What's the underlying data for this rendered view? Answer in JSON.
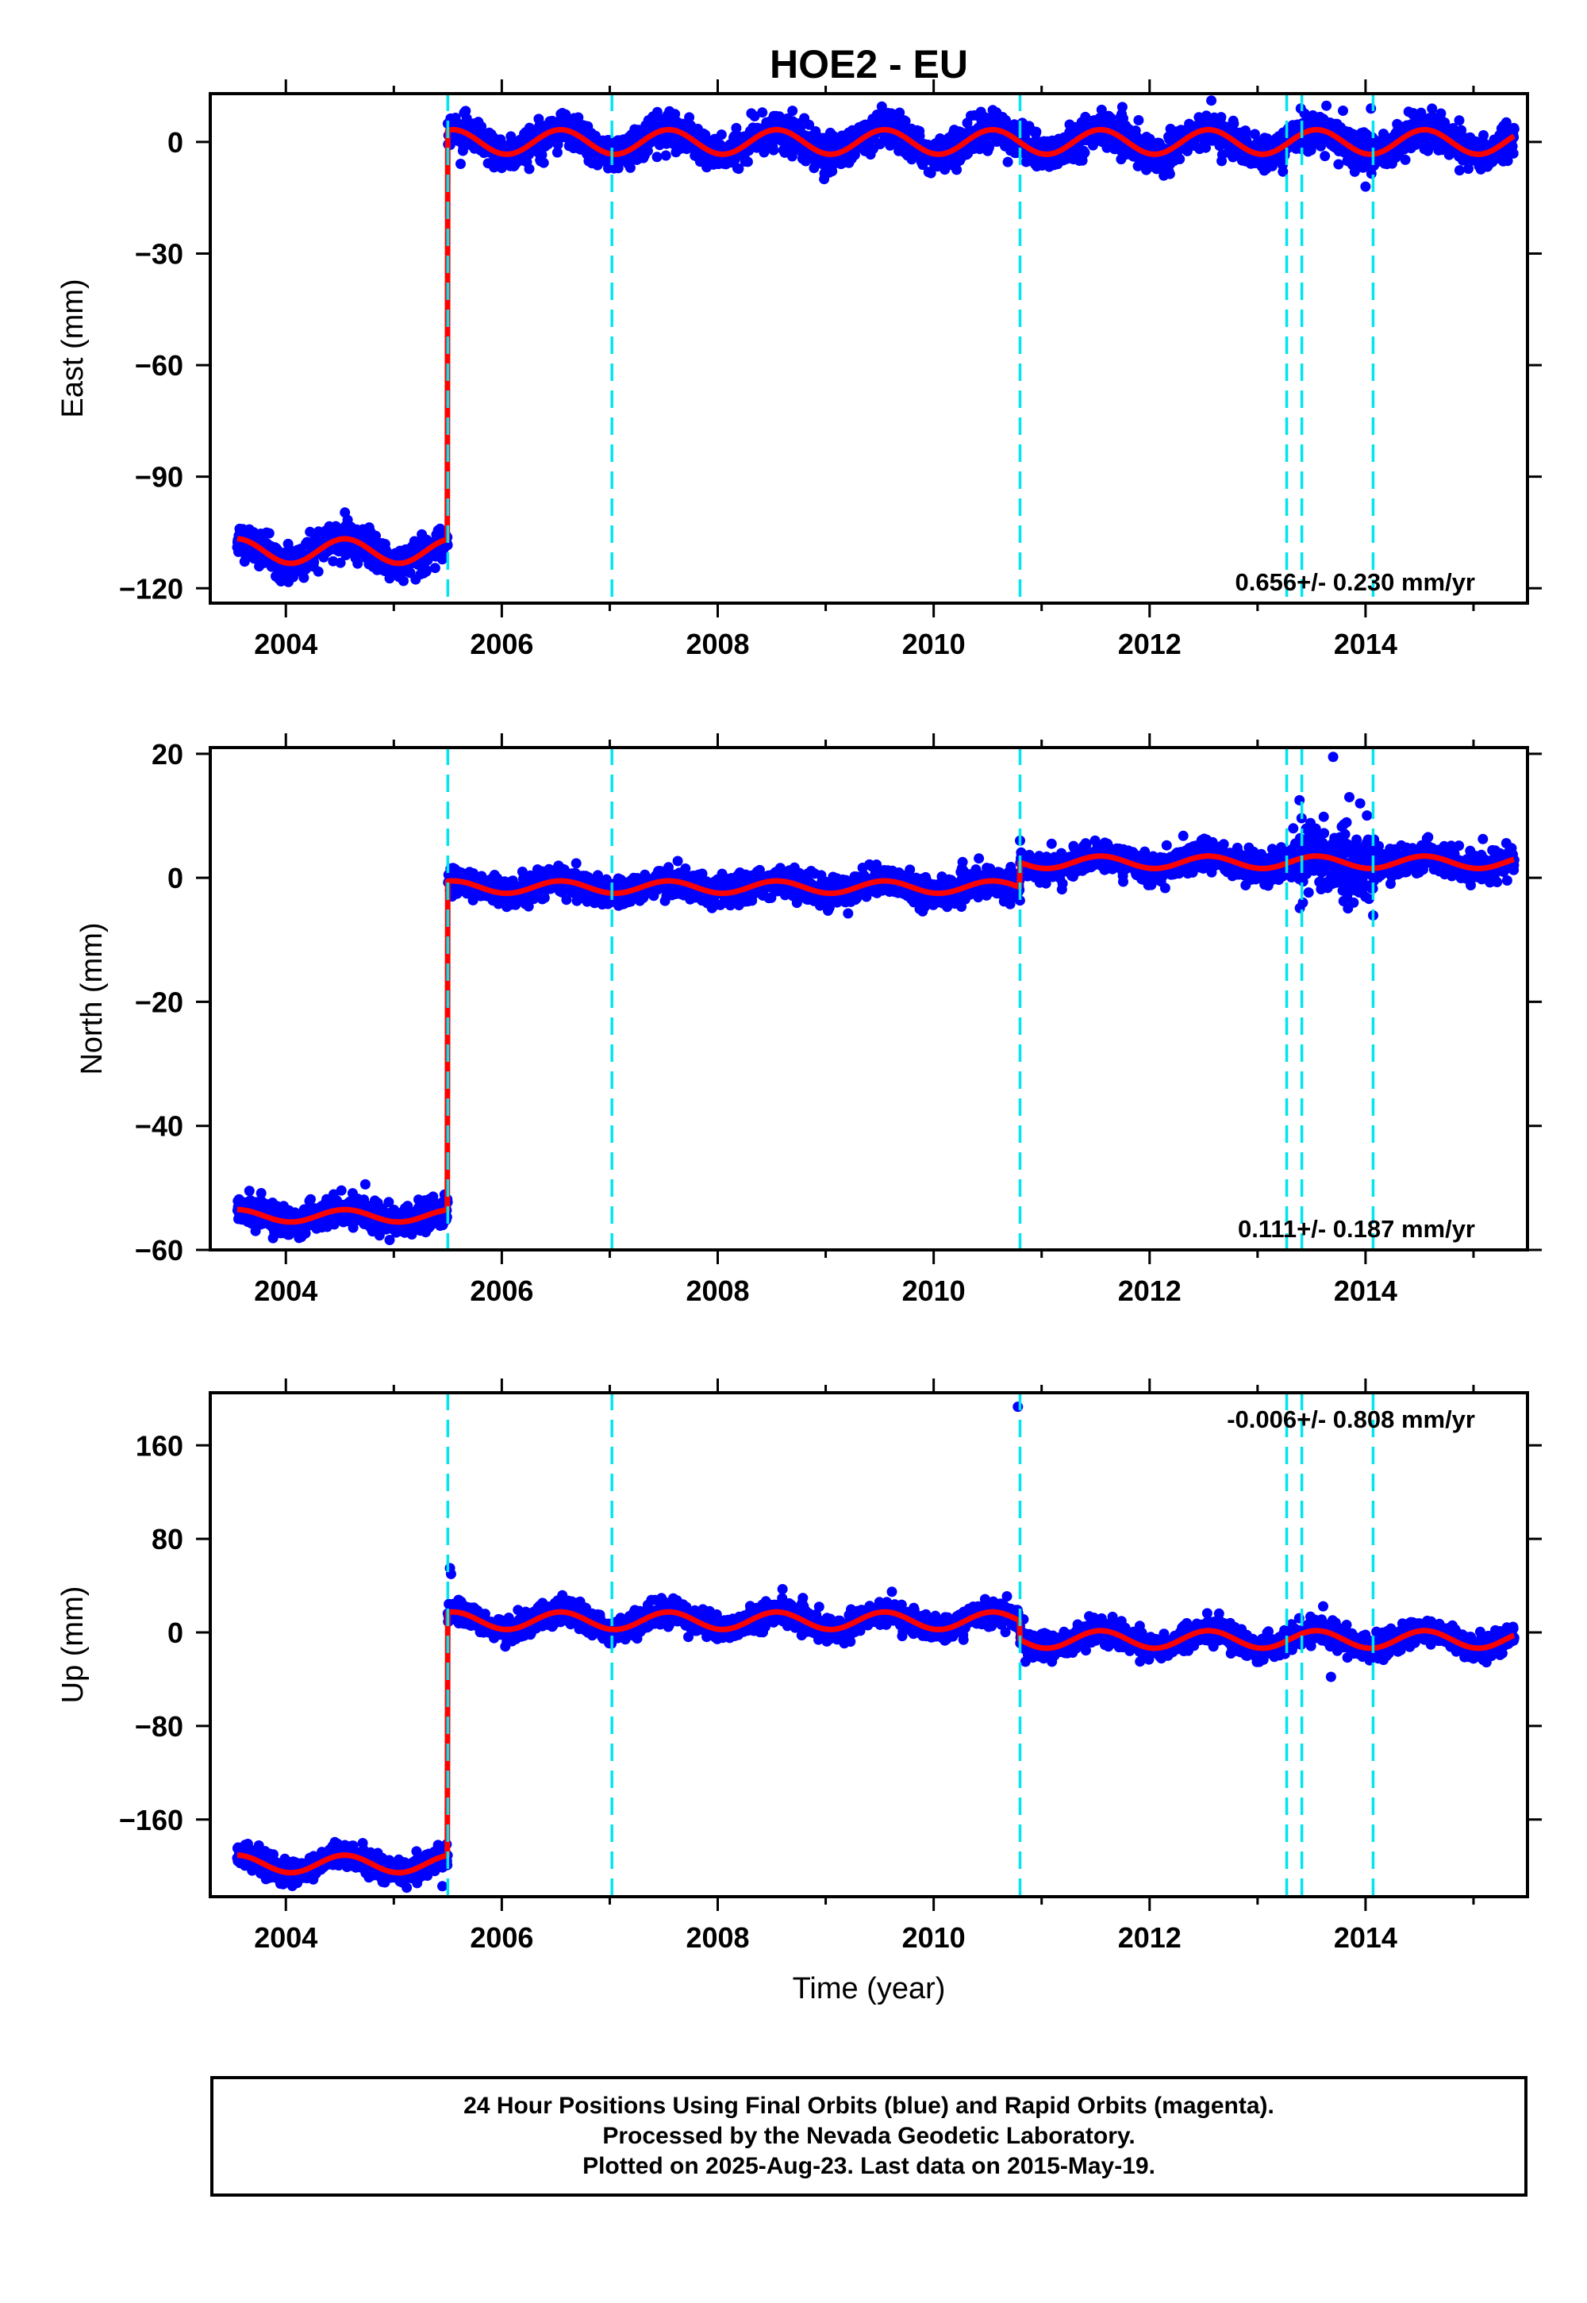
{
  "chart_data": [
    {
      "type": "scatter",
      "title": "HOE2 - EU",
      "ylabel": "East (mm)",
      "xlabel": "",
      "xlim": [
        2003.3,
        2015.5
      ],
      "ylim": [
        -124,
        13
      ],
      "xticks": [
        2004,
        2006,
        2008,
        2010,
        2012,
        2014
      ],
      "yticks": [
        0,
        -30,
        -60,
        -90,
        -120
      ],
      "xtick_labels": [
        "2004",
        "2006",
        "2008",
        "2010",
        "2012",
        "2014"
      ],
      "ytick_labels": [
        "0",
        "−30",
        "−60",
        "−90",
        "−120"
      ],
      "rate_label": "0.656+/- 0.230 mm/yr",
      "rate_position": "bottom-right",
      "time_range": [
        2003.55,
        2015.38
      ],
      "steps": [
        {
          "x": 2005.5,
          "before": -110,
          "after": 0
        }
      ],
      "trend_rate": 0.656,
      "seasonal_amplitude": 3.3,
      "scatter_noise": 2.2,
      "outliers": [
        {
          "x": 2013.4,
          "y": 9
        },
        {
          "x": 2013.9,
          "y": -8
        },
        {
          "x": 2014.0,
          "y": -12
        },
        {
          "x": 2014.05,
          "y": 9
        },
        {
          "x": 2013.75,
          "y": -6
        }
      ],
      "event_lines": [
        2005.5,
        2007.02,
        2010.8,
        2013.27,
        2013.41,
        2014.07
      ],
      "series": [
        {
          "values_description": "daily positions",
          "color": "#0000ff"
        },
        {
          "values_description": "model fit",
          "color": "#ff0000"
        }
      ]
    },
    {
      "type": "scatter",
      "ylabel": "North (mm)",
      "xlabel": "",
      "xlim": [
        2003.3,
        2015.5
      ],
      "ylim": [
        -60,
        21
      ],
      "xticks": [
        2004,
        2006,
        2008,
        2010,
        2012,
        2014
      ],
      "yticks": [
        20,
        0,
        -20,
        -40,
        -60
      ],
      "xtick_labels": [
        "2004",
        "2006",
        "2008",
        "2010",
        "2012",
        "2014"
      ],
      "ytick_labels": [
        "20",
        "0",
        "−20",
        "−40",
        "−60"
      ],
      "rate_label": "0.111+/- 0.187 mm/yr",
      "rate_position": "bottom-right",
      "time_range": [
        2003.55,
        2015.38
      ],
      "steps": [
        {
          "x": 2005.5,
          "before": -54.5,
          "after": -1.5
        },
        {
          "x": 2010.8,
          "before": -1.5,
          "after": 2.5
        }
      ],
      "trend_rate": 0.111,
      "seasonal_amplitude": 1.0,
      "scatter_noise": 1.1,
      "outliers": [
        {
          "x": 2013.7,
          "y": 19.5
        },
        {
          "x": 2013.85,
          "y": 13
        },
        {
          "x": 2013.95,
          "y": 12
        },
        {
          "x": 2013.42,
          "y": -4
        },
        {
          "x": 2010.8,
          "y": 6
        }
      ],
      "event_lines": [
        2005.5,
        2007.02,
        2010.8,
        2013.27,
        2013.41,
        2014.07
      ],
      "series": [
        {
          "values_description": "daily positions",
          "color": "#0000ff"
        },
        {
          "values_description": "model fit",
          "color": "#ff0000"
        }
      ]
    },
    {
      "type": "scatter",
      "ylabel": "Up (mm)",
      "xlabel": "Time (year)",
      "xlim": [
        2003.3,
        2015.5
      ],
      "ylim": [
        -226,
        205
      ],
      "xticks": [
        2004,
        2006,
        2008,
        2010,
        2012,
        2014
      ],
      "yticks": [
        160,
        80,
        0,
        -80,
        -160
      ],
      "xtick_labels": [
        "2004",
        "2006",
        "2008",
        "2010",
        "2012",
        "2014"
      ],
      "ytick_labels": [
        "160",
        "80",
        "0",
        "−80",
        "−160"
      ],
      "rate_label": "-0.006+/- 0.808 mm/yr",
      "rate_position": "top-right",
      "time_range": [
        2003.55,
        2015.38
      ],
      "steps": [
        {
          "x": 2005.5,
          "before": -198,
          "after": 10
        },
        {
          "x": 2010.8,
          "before": 10,
          "after": -6
        }
      ],
      "trend_rate": -0.006,
      "seasonal_amplitude": 7.5,
      "scatter_noise": 5,
      "outliers": [
        {
          "x": 2010.78,
          "y": 193
        },
        {
          "x": 2005.52,
          "y": 55
        },
        {
          "x": 2005.53,
          "y": 50
        },
        {
          "x": 2008.6,
          "y": 37
        },
        {
          "x": 2013.68,
          "y": -38
        },
        {
          "x": 2005.45,
          "y": -217
        },
        {
          "x": 2010.85,
          "y": -25
        }
      ],
      "event_lines": [
        2005.5,
        2007.02,
        2010.8,
        2013.27,
        2013.41,
        2014.07
      ],
      "series": [
        {
          "values_description": "daily positions",
          "color": "#0000ff"
        },
        {
          "values_description": "model fit",
          "color": "#ff0000"
        }
      ]
    }
  ],
  "footer": {
    "line1": "24 Hour Positions Using Final Orbits (blue) and Rapid Orbits (magenta).",
    "line2": "Processed by the Nevada Geodetic Laboratory.",
    "line3": "Plotted on 2025-Aug-23. Last data on 2015-May-19."
  }
}
